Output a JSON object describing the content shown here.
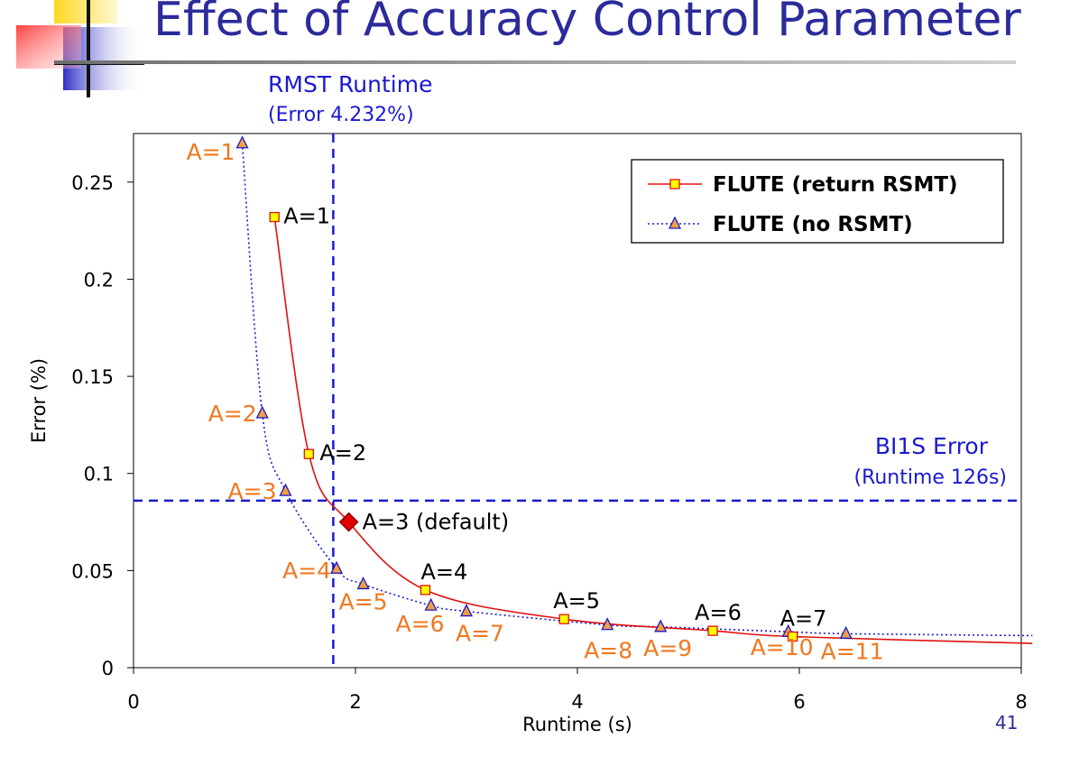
{
  "slide": {
    "title": "Effect of Accuracy Control Parameter",
    "page_number": "41"
  },
  "colors": {
    "title": "#2b2b9b",
    "annotation_blue": "#1a1ad0",
    "series_red": "#e01010",
    "series_blue": "#1a1ad0",
    "label_orange": "#f07820",
    "marker_yellow": "#ffff00",
    "marker_orange": "#f0a040",
    "default_point": "#e00000"
  },
  "chart_data": {
    "type": "line",
    "xlabel": "Runtime (s)",
    "ylabel": "Error (%)",
    "xlim": [
      0,
      8
    ],
    "ylim": [
      0,
      0.275
    ],
    "x_ticks": [
      0,
      2,
      4,
      6,
      8
    ],
    "y_ticks": [
      0,
      0.05,
      0.1,
      0.15,
      0.2,
      0.25
    ],
    "x_tick_labels": [
      "0",
      "2",
      "4",
      "6",
      "8"
    ],
    "y_tick_labels": [
      "0",
      "0.05",
      "0.1",
      "0.15",
      "0.2",
      "0.25"
    ],
    "grid": false,
    "legend_position": "top-right",
    "series": [
      {
        "name": "FLUTE (return RSMT)",
        "style": "solid",
        "marker": "square",
        "points": [
          {
            "x": 1.27,
            "y": 0.232,
            "label": "A=1"
          },
          {
            "x": 1.58,
            "y": 0.11,
            "label": "A=2"
          },
          {
            "x": 1.94,
            "y": 0.075,
            "label": "A=3 (default)"
          },
          {
            "x": 2.63,
            "y": 0.04,
            "label": "A=4"
          },
          {
            "x": 3.88,
            "y": 0.025,
            "label": "A=5"
          },
          {
            "x": 5.22,
            "y": 0.019,
            "label": "A=6"
          },
          {
            "x": 5.94,
            "y": 0.016,
            "label": "A=7"
          }
        ],
        "tail": {
          "x": 8.1,
          "y": 0.0125
        }
      },
      {
        "name": "FLUTE (no RSMT)",
        "style": "dotted",
        "marker": "triangle",
        "points": [
          {
            "x": 0.98,
            "y": 0.27,
            "label": "A=1"
          },
          {
            "x": 1.16,
            "y": 0.131,
            "label": "A=2"
          },
          {
            "x": 1.37,
            "y": 0.091,
            "label": "A=3"
          },
          {
            "x": 1.83,
            "y": 0.051,
            "label": "A=4"
          },
          {
            "x": 2.07,
            "y": 0.043,
            "label": "A=5"
          },
          {
            "x": 2.68,
            "y": 0.032,
            "label": "A=6"
          },
          {
            "x": 3.0,
            "y": 0.029,
            "label": "A=7"
          },
          {
            "x": 4.27,
            "y": 0.022,
            "label": "A=8"
          },
          {
            "x": 4.75,
            "y": 0.021,
            "label": "A=9"
          },
          {
            "x": 5.9,
            "y": 0.0185,
            "label": "A=10"
          },
          {
            "x": 6.42,
            "y": 0.0175,
            "label": "A=11"
          }
        ],
        "tail": {
          "x": 8.1,
          "y": 0.0165
        }
      }
    ],
    "reference_lines": [
      {
        "orientation": "vertical",
        "value": 1.8,
        "label": "RMST Runtime",
        "sublabel": "(Error 4.232%)"
      },
      {
        "orientation": "horizontal",
        "value": 0.086,
        "label": "BI1S Error",
        "sublabel": "(Runtime 126s)"
      }
    ]
  }
}
